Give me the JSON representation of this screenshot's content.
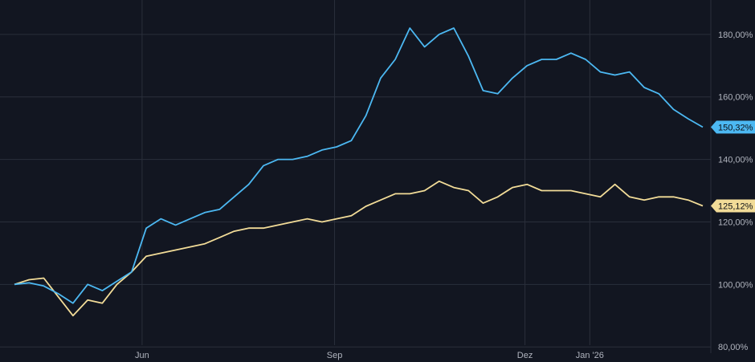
{
  "chart_data": {
    "type": "line",
    "xlabel": "",
    "ylabel": "",
    "x_ticks": [
      "Jun",
      "Sep",
      "Dez",
      "Jan '26"
    ],
    "y_ticks": [
      "80,00%",
      "100,00%",
      "120,00%",
      "140,00%",
      "160,00%",
      "180,00%"
    ],
    "ylim": [
      78,
      191
    ],
    "grid": true,
    "colors": {
      "background": "#121621",
      "grid": "#2a2f3b",
      "blue": "#4cb8f2",
      "yellow": "#f2dc98"
    },
    "x": [
      "2025-04-01",
      "2025-04-08",
      "2025-04-15",
      "2025-04-22",
      "2025-04-29",
      "2025-05-06",
      "2025-05-13",
      "2025-05-20",
      "2025-05-27",
      "2025-06-03",
      "2025-06-10",
      "2025-06-17",
      "2025-06-24",
      "2025-07-01",
      "2025-07-08",
      "2025-07-15",
      "2025-07-22",
      "2025-07-29",
      "2025-08-05",
      "2025-08-12",
      "2025-08-19",
      "2025-08-26",
      "2025-09-02",
      "2025-09-09",
      "2025-09-16",
      "2025-09-23",
      "2025-09-30",
      "2025-10-07",
      "2025-10-14",
      "2025-10-21",
      "2025-10-28",
      "2025-11-04",
      "2025-11-11",
      "2025-11-18",
      "2025-11-25",
      "2025-12-02",
      "2025-12-09",
      "2025-12-16",
      "2025-12-23",
      "2025-12-30",
      "2026-01-06",
      "2026-01-13",
      "2026-01-20",
      "2026-01-27",
      "2026-02-03",
      "2026-02-10",
      "2026-02-17",
      "2026-02-24"
    ],
    "series": [
      {
        "end_label": "150,32%",
        "values": [
          100,
          100.5,
          99.5,
          97,
          94,
          100,
          98,
          101,
          104,
          118,
          121,
          119,
          121,
          123,
          124,
          128,
          132,
          138,
          140,
          140,
          141,
          143,
          144,
          146,
          154,
          166,
          172,
          182,
          176,
          180,
          182,
          173,
          162,
          161,
          166,
          170,
          172,
          172,
          174,
          172,
          168,
          167,
          168,
          163,
          161,
          156,
          153,
          150.32
        ]
      },
      {
        "end_label": "125,12%",
        "values": [
          100,
          101.5,
          102,
          96,
          90,
          95,
          94,
          100,
          104,
          109,
          110,
          111,
          112,
          113,
          115,
          117,
          118,
          118,
          119,
          120,
          121,
          120,
          121,
          122,
          125,
          127,
          129,
          129,
          130,
          133,
          131,
          130,
          126,
          128,
          131,
          132,
          130,
          130,
          130,
          129,
          128,
          132,
          128,
          127,
          128,
          128,
          127,
          125.12
        ]
      }
    ]
  }
}
